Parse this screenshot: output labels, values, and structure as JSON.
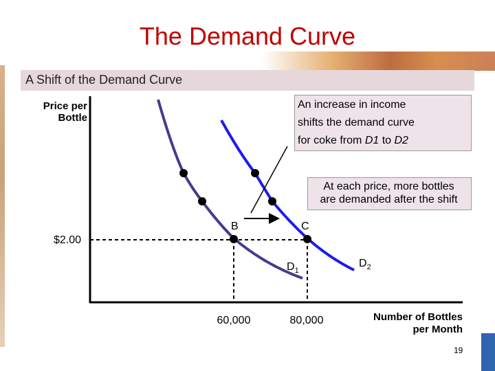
{
  "header": {
    "title": "The Demand Curve",
    "subtitle": "A Shift of the Demand Curve"
  },
  "y_axis": {
    "label_lines": [
      "Price per",
      "Bottle"
    ],
    "price": "$2.00"
  },
  "x_axis": {
    "label_lines": [
      "Number of Bottles",
      "per Month"
    ],
    "quantities": [
      "60,000",
      "80,000"
    ]
  },
  "callouts": [
    {
      "lines": [
        "An increase in income",
        "shifts the demand curve"
      ],
      "last_line": [
        "for coke from ",
        "D1",
        " to ",
        "D2"
      ]
    },
    {
      "lines": [
        "At each price, more bottles",
        "are demanded after the shift"
      ]
    }
  ],
  "points": [
    "B",
    "C"
  ],
  "curves": [
    {
      "letter": "D",
      "sub": "1"
    },
    {
      "letter": "D",
      "sub": "2"
    }
  ],
  "page_number": "19"
}
